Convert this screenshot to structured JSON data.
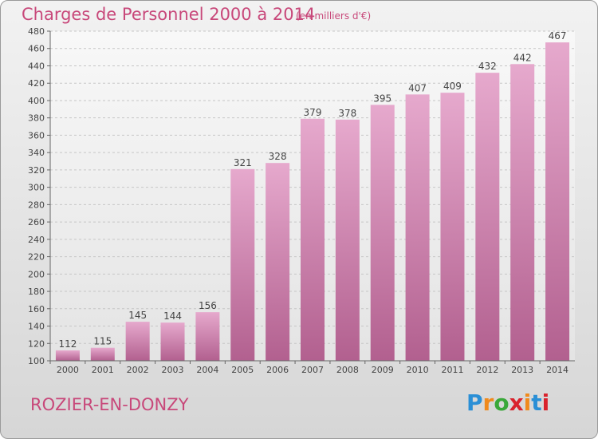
{
  "title": "Charges de Personnel 2000 à 2014",
  "subtitle": "(en milliers d'€)",
  "commune": "ROZIER-EN-DONZY",
  "logo": {
    "letters": [
      "P",
      "r",
      "o",
      "x",
      "i",
      "t",
      "i"
    ],
    "colors": [
      "#2a8fd6",
      "#f08a1c",
      "#3aa83a",
      "#d9232d",
      "#f08a1c",
      "#2a8fd6",
      "#d9232d"
    ]
  },
  "colors": {
    "bar_light": "#e6a9cd",
    "bar_dark": "#b2608f",
    "accent": "#c8487a"
  },
  "chart_data": {
    "type": "bar",
    "categories": [
      "2000",
      "2001",
      "2002",
      "2003",
      "2004",
      "2005",
      "2006",
      "2007",
      "2008",
      "2009",
      "2010",
      "2011",
      "2012",
      "2013",
      "2014"
    ],
    "values": [
      112,
      115,
      145,
      144,
      156,
      321,
      328,
      379,
      378,
      395,
      407,
      409,
      432,
      442,
      467
    ],
    "data_labels": [
      "112",
      "115",
      "145",
      "144",
      "156",
      "321",
      "328",
      "379",
      "378",
      "395",
      "407",
      "409",
      "432",
      "442",
      "467"
    ],
    "yticks": [
      "100",
      "120",
      "140",
      "160",
      "180",
      "200",
      "220",
      "240",
      "260",
      "280",
      "300",
      "320",
      "340",
      "360",
      "380",
      "400",
      "420",
      "440",
      "460",
      "480"
    ],
    "ylim": [
      100,
      480
    ],
    "grid": true,
    "title": "Charges de Personnel 2000 à 2014",
    "xlabel": "",
    "ylabel": ""
  }
}
